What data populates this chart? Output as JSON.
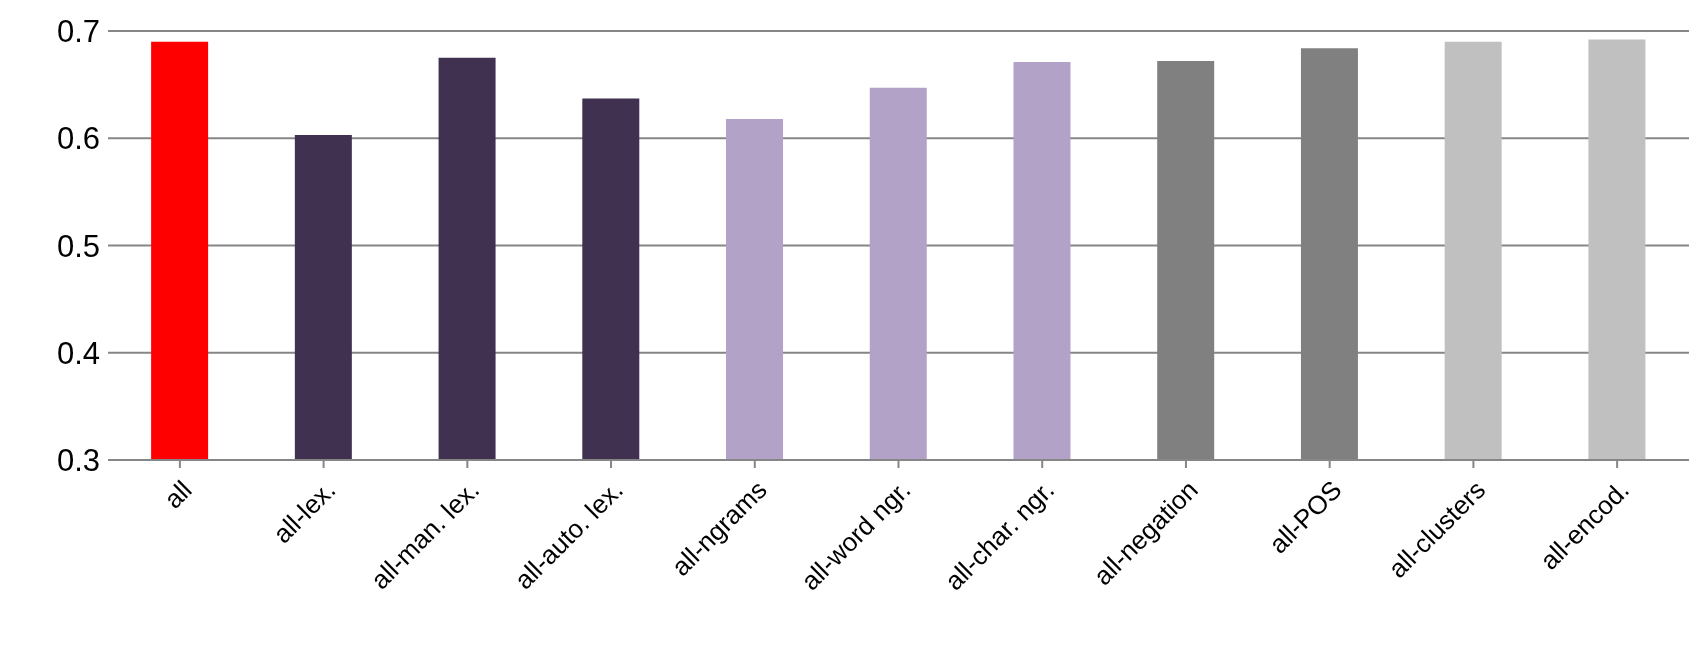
{
  "chart_data": {
    "type": "bar",
    "categories": [
      "all",
      "all-lex.",
      "all-man. lex.",
      "all-auto. lex.",
      "all-ngrams",
      "all-word ngr.",
      "all-char. ngr.",
      "all-negation",
      "all-POS",
      "all-clusters",
      "all-encod."
    ],
    "values": [
      0.69,
      0.603,
      0.675,
      0.637,
      0.618,
      0.647,
      0.671,
      0.672,
      0.684,
      0.69,
      0.692
    ],
    "colors": [
      "#ff0000",
      "#403151",
      "#403151",
      "#403151",
      "#b3a2c7",
      "#b3a2c7",
      "#b3a2c7",
      "#808080",
      "#808080",
      "#c0c0c0",
      "#c0c0c0"
    ],
    "ylim": [
      0.3,
      0.7
    ],
    "yticks": [
      0.3,
      0.4,
      0.5,
      0.6,
      0.7
    ],
    "grid": "y"
  }
}
